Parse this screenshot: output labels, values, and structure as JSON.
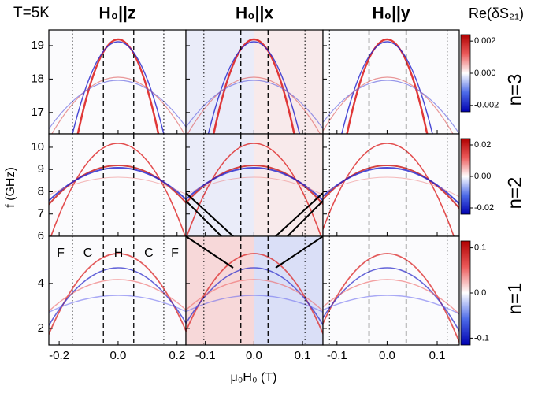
{
  "title_left": "T=5K",
  "colorbar_title": "Re(δS₂₁)",
  "x_label": "μ₀H₀ (T)",
  "y_label": "f (GHz)",
  "columns": [
    {
      "title": "H₀||z",
      "xlim": [
        -0.235,
        0.23
      ],
      "xticks": [
        -0.2,
        {
          "value": 0,
          "label": "0.0"
        },
        0.2
      ],
      "dotted_lines": [
        -0.155,
        0.155
      ],
      "dashed_lines": [
        -0.05,
        0.053
      ]
    },
    {
      "title": "H₀||x",
      "xlim": [
        -0.14,
        0.142
      ],
      "xticks": [
        -0.1,
        {
          "value": 0,
          "label": "0.0"
        },
        0.1
      ],
      "dotted_lines": [
        -0.103,
        0.105
      ],
      "dashed_lines": [
        -0.027,
        0.029
      ]
    },
    {
      "title": "H₀||y",
      "xlim": [
        -0.128,
        0.144
      ],
      "xticks": [
        -0.1,
        {
          "value": 0,
          "label": "0.0"
        },
        0.1
      ],
      "dotted_lines": [
        -0.115,
        0.12
      ],
      "dashed_lines": [
        -0.036,
        0.038
      ]
    }
  ],
  "rows": [
    {
      "label": "n=3",
      "ylim": [
        16.36,
        19.47
      ],
      "yticks": [
        17,
        18,
        19
      ],
      "clim": [
        -0.0024,
        0.0024
      ],
      "cticks": [
        {
          "value": 0.002,
          "label": "0.002"
        },
        {
          "value": 0,
          "label": "0.000"
        },
        {
          "value": -0.002,
          "label": "-0.002"
        }
      ]
    },
    {
      "label": "n=2",
      "ylim": [
        6,
        10.6
      ],
      "yticks": [
        6,
        7,
        8,
        9,
        10
      ],
      "clim": [
        -0.024,
        0.024
      ],
      "cticks": [
        {
          "value": 0.02,
          "label": "0.02"
        },
        {
          "value": 0,
          "label": "0.00"
        },
        {
          "value": -0.02,
          "label": "-0.02"
        }
      ]
    },
    {
      "label": "n=1",
      "ylim": [
        1.26,
        6.1
      ],
      "yticks": [
        2,
        4
      ],
      "clim": [
        -0.115,
        0.115
      ],
      "cticks": [
        0.1,
        {
          "value": 0,
          "label": "0.0"
        },
        -0.1
      ]
    }
  ],
  "region_labels": [
    "F",
    "C",
    "H",
    "C",
    "F"
  ]
}
